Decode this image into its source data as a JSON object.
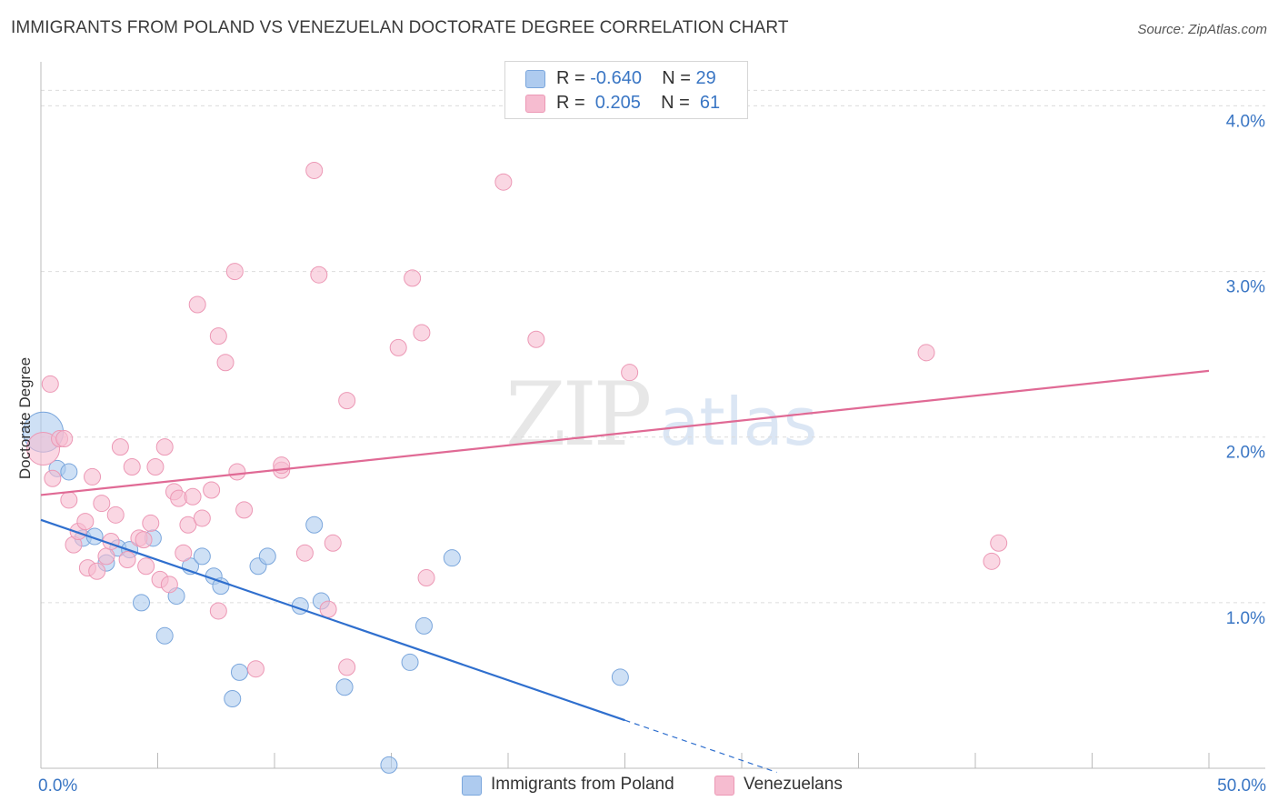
{
  "title": "IMMIGRANTS FROM POLAND VS VENEZUELAN DOCTORATE DEGREE CORRELATION CHART",
  "source": "Source: ZipAtlas.com",
  "watermark": {
    "zip": "ZIP",
    "atlas": "atlas"
  },
  "legend": {
    "rows": [
      {
        "r_label": "R = ",
        "r_value": "-0.640",
        "n_label": "N = ",
        "n_value": "29",
        "color": "#aecbef"
      },
      {
        "r_label": "R = ",
        "r_value": " 0.205",
        "n_label": "N = ",
        "n_value": " 61",
        "color": "#f6bcd0"
      }
    ]
  },
  "bottom_legend": [
    {
      "label": "Immigrants from Poland",
      "color": "#aecbef"
    },
    {
      "label": "Venezuelans",
      "color": "#f6bcd0"
    }
  ],
  "chart_data": {
    "type": "scatter",
    "title": "IMMIGRANTS FROM POLAND VS VENEZUELAN DOCTORATE DEGREE CORRELATION CHART",
    "xlabel": "",
    "ylabel": "Doctorate Degree",
    "xlim": [
      0,
      50
    ],
    "ylim": [
      0,
      4.2
    ],
    "x_tick_labels": [
      "0.0%",
      "50.0%"
    ],
    "y_ticks": [
      1,
      2,
      3,
      4
    ],
    "y_tick_labels": [
      "1.0%",
      "2.0%",
      "3.0%",
      "4.0%"
    ],
    "series": [
      {
        "name": "Immigrants from Poland",
        "color": "#aecbef",
        "stroke": "#7aa6dc",
        "trend_color": "#2f6fce",
        "trend": {
          "x0": 0,
          "y0": 1.5,
          "x1": 25,
          "y1": 0.29,
          "dash_to_x": 31.5
        },
        "points": [
          [
            0.1,
            2.03
          ],
          [
            0.7,
            1.81
          ],
          [
            1.2,
            1.79
          ],
          [
            1.8,
            1.39
          ],
          [
            2.3,
            1.4
          ],
          [
            2.8,
            1.24
          ],
          [
            3.3,
            1.33
          ],
          [
            3.8,
            1.32
          ],
          [
            4.3,
            1.0
          ],
          [
            4.8,
            1.39
          ],
          [
            5.3,
            0.8
          ],
          [
            5.8,
            1.04
          ],
          [
            6.4,
            1.22
          ],
          [
            6.9,
            1.28
          ],
          [
            7.4,
            1.16
          ],
          [
            7.7,
            1.1
          ],
          [
            8.2,
            0.42
          ],
          [
            8.5,
            0.58
          ],
          [
            9.3,
            1.22
          ],
          [
            9.7,
            1.28
          ],
          [
            11.1,
            0.98
          ],
          [
            11.7,
            1.47
          ],
          [
            12.0,
            1.01
          ],
          [
            13.0,
            0.49
          ],
          [
            14.9,
            0.02
          ],
          [
            15.8,
            0.64
          ],
          [
            16.4,
            0.86
          ],
          [
            17.6,
            1.27
          ],
          [
            24.8,
            0.55
          ]
        ]
      },
      {
        "name": "Venezuelans",
        "color": "#f6bcd0",
        "stroke": "#ec98b5",
        "trend_color": "#e06a95",
        "trend": {
          "x0": 0,
          "y0": 1.65,
          "x1": 50,
          "y1": 2.4
        },
        "points": [
          [
            0.1,
            1.93
          ],
          [
            0.4,
            2.32
          ],
          [
            0.5,
            1.75
          ],
          [
            0.8,
            1.99
          ],
          [
            1.0,
            1.99
          ],
          [
            1.2,
            1.62
          ],
          [
            1.4,
            1.35
          ],
          [
            1.6,
            1.43
          ],
          [
            1.9,
            1.49
          ],
          [
            2.0,
            1.21
          ],
          [
            2.2,
            1.76
          ],
          [
            2.4,
            1.19
          ],
          [
            2.6,
            1.6
          ],
          [
            2.8,
            1.28
          ],
          [
            3.0,
            1.37
          ],
          [
            3.2,
            1.53
          ],
          [
            3.4,
            1.94
          ],
          [
            3.7,
            1.26
          ],
          [
            3.9,
            1.82
          ],
          [
            4.2,
            1.39
          ],
          [
            4.4,
            1.38
          ],
          [
            4.5,
            1.22
          ],
          [
            4.7,
            1.48
          ],
          [
            4.9,
            1.82
          ],
          [
            5.1,
            1.14
          ],
          [
            5.3,
            1.94
          ],
          [
            5.5,
            1.11
          ],
          [
            5.7,
            1.67
          ],
          [
            5.9,
            1.63
          ],
          [
            6.1,
            1.3
          ],
          [
            6.3,
            1.47
          ],
          [
            6.5,
            1.64
          ],
          [
            6.7,
            2.8
          ],
          [
            6.9,
            1.51
          ],
          [
            7.3,
            1.68
          ],
          [
            7.6,
            2.61
          ],
          [
            7.6,
            0.95
          ],
          [
            7.9,
            2.45
          ],
          [
            8.3,
            3.0
          ],
          [
            8.4,
            1.79
          ],
          [
            8.7,
            1.56
          ],
          [
            9.2,
            0.6
          ],
          [
            10.3,
            1.8
          ],
          [
            10.3,
            1.83
          ],
          [
            11.3,
            1.3
          ],
          [
            11.7,
            3.61
          ],
          [
            11.9,
            2.98
          ],
          [
            12.3,
            0.96
          ],
          [
            12.5,
            1.36
          ],
          [
            13.1,
            0.61
          ],
          [
            13.1,
            2.22
          ],
          [
            15.3,
            2.54
          ],
          [
            15.9,
            2.96
          ],
          [
            16.3,
            2.63
          ],
          [
            16.5,
            1.15
          ],
          [
            19.8,
            3.54
          ],
          [
            21.2,
            2.59
          ],
          [
            25.2,
            2.39
          ],
          [
            37.9,
            2.51
          ],
          [
            40.7,
            1.25
          ],
          [
            41.0,
            1.36
          ]
        ]
      }
    ]
  }
}
